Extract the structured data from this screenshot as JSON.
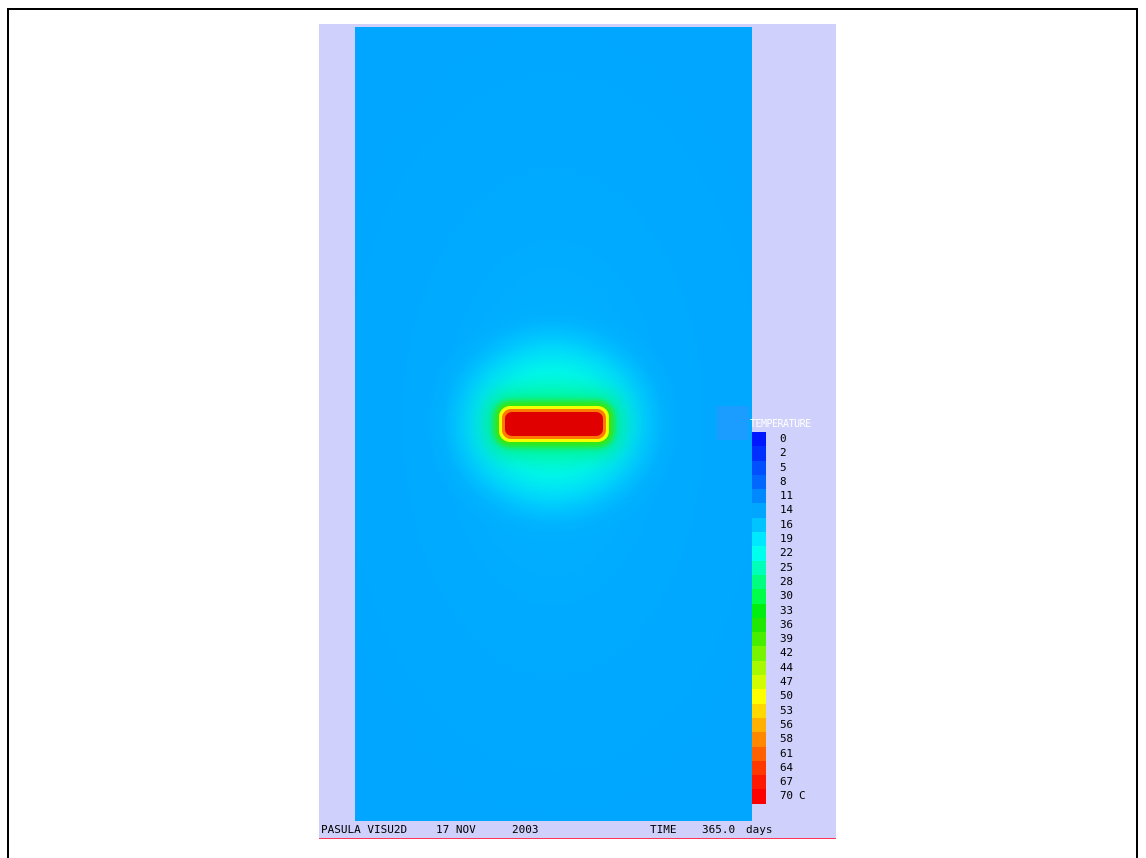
{
  "legend": {
    "title": "TEMPERATURE",
    "entries": [
      {
        "label": "0",
        "color": "#0018ff"
      },
      {
        "label": "2",
        "color": "#0030ff"
      },
      {
        "label": "5",
        "color": "#0050ff"
      },
      {
        "label": "8",
        "color": "#0068ff"
      },
      {
        "label": "11",
        "color": "#0088ff"
      },
      {
        "label": "14",
        "color": "#00a6ff"
      },
      {
        "label": "16",
        "color": "#00c4ff"
      },
      {
        "label": "19",
        "color": "#00e8ff"
      },
      {
        "label": "22",
        "color": "#00ffec"
      },
      {
        "label": "25",
        "color": "#00ffb8"
      },
      {
        "label": "28",
        "color": "#00ff80"
      },
      {
        "label": "30",
        "color": "#00ff48"
      },
      {
        "label": "33",
        "color": "#00ee10"
      },
      {
        "label": "36",
        "color": "#20e800"
      },
      {
        "label": "39",
        "color": "#48ee00"
      },
      {
        "label": "42",
        "color": "#78f400"
      },
      {
        "label": "44",
        "color": "#a8f800"
      },
      {
        "label": "47",
        "color": "#d4fc00"
      },
      {
        "label": "50",
        "color": "#ffff00"
      },
      {
        "label": "53",
        "color": "#ffd800"
      },
      {
        "label": "56",
        "color": "#ffb000"
      },
      {
        "label": "58",
        "color": "#ff8800"
      },
      {
        "label": "61",
        "color": "#ff6000"
      },
      {
        "label": "64",
        "color": "#ff3800"
      },
      {
        "label": "67",
        "color": "#ff1800"
      },
      {
        "label": "70 C",
        "color": "#ff0000"
      }
    ]
  },
  "footer": {
    "program": "PASULA VISU2D",
    "date": "17 NOV",
    "year": "2003",
    "time_label": "TIME",
    "time_value": "365.0",
    "time_unit": "days"
  }
}
